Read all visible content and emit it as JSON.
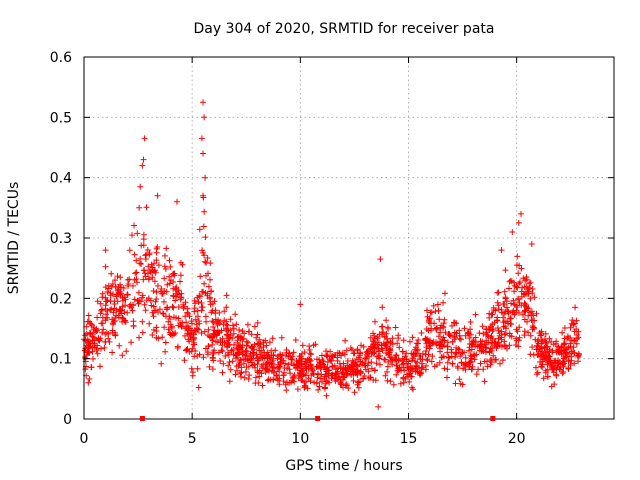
{
  "chart_data": {
    "type": "scatter",
    "title": "Day 304 of 2020, SRMTID for receiver pata",
    "xlabel": "GPS time / hours",
    "ylabel": "SRMTID / TECUs",
    "xlim": [
      0,
      24.5
    ],
    "ylim": [
      0,
      0.6
    ],
    "xticks": [
      0,
      5,
      10,
      15,
      20
    ],
    "xtick_labels": [
      "0",
      "5",
      "10",
      "15",
      "20"
    ],
    "yticks": [
      0,
      0.1,
      0.2,
      0.3,
      0.4,
      0.5,
      0.6
    ],
    "ytick_labels": [
      "0",
      "0.1",
      "0.2",
      "0.3",
      "0.4",
      "0.5",
      "0.6"
    ],
    "grid": true,
    "marker": "+",
    "color": "#ff0000",
    "axis_markers_x": [
      2.7,
      10.8,
      18.9
    ],
    "series": [
      {
        "name": "SRMTID",
        "profile": [
          [
            0.0,
            0.12,
            0.05
          ],
          [
            0.5,
            0.12,
            0.05
          ],
          [
            1.0,
            0.17,
            0.07
          ],
          [
            1.5,
            0.19,
            0.07
          ],
          [
            2.0,
            0.19,
            0.08
          ],
          [
            2.5,
            0.24,
            0.12
          ],
          [
            3.0,
            0.24,
            0.12
          ],
          [
            3.5,
            0.18,
            0.09
          ],
          [
            4.0,
            0.19,
            0.08
          ],
          [
            4.5,
            0.18,
            0.09
          ],
          [
            5.0,
            0.11,
            0.05
          ],
          [
            5.5,
            0.22,
            0.14
          ],
          [
            6.0,
            0.15,
            0.06
          ],
          [
            6.5,
            0.13,
            0.06
          ],
          [
            7.0,
            0.12,
            0.05
          ],
          [
            7.5,
            0.11,
            0.05
          ],
          [
            8.0,
            0.1,
            0.05
          ],
          [
            9.0,
            0.09,
            0.04
          ],
          [
            10.0,
            0.085,
            0.04
          ],
          [
            11.0,
            0.08,
            0.04
          ],
          [
            12.0,
            0.085,
            0.04
          ],
          [
            13.0,
            0.09,
            0.04
          ],
          [
            13.8,
            0.13,
            0.06
          ],
          [
            14.5,
            0.1,
            0.05
          ],
          [
            15.0,
            0.08,
            0.04
          ],
          [
            15.5,
            0.1,
            0.05
          ],
          [
            16.0,
            0.14,
            0.06
          ],
          [
            17.0,
            0.13,
            0.06
          ],
          [
            17.5,
            0.11,
            0.05
          ],
          [
            18.0,
            0.12,
            0.05
          ],
          [
            18.5,
            0.12,
            0.05
          ],
          [
            19.5,
            0.17,
            0.07
          ],
          [
            20.0,
            0.19,
            0.08
          ],
          [
            20.5,
            0.2,
            0.08
          ],
          [
            21.0,
            0.12,
            0.05
          ],
          [
            21.5,
            0.1,
            0.04
          ],
          [
            22.0,
            0.1,
            0.04
          ],
          [
            22.5,
            0.12,
            0.05
          ],
          [
            23.0,
            0.13,
            0.05
          ]
        ],
        "peaks": [
          [
            2.8,
            0.465
          ],
          [
            2.75,
            0.43
          ],
          [
            2.7,
            0.42
          ],
          [
            2.6,
            0.385
          ],
          [
            2.55,
            0.35
          ],
          [
            5.5,
            0.525
          ],
          [
            5.55,
            0.5
          ],
          [
            5.45,
            0.465
          ],
          [
            5.5,
            0.44
          ],
          [
            5.6,
            0.4
          ],
          [
            5.5,
            0.37
          ],
          [
            4.3,
            0.36
          ],
          [
            3.4,
            0.37
          ],
          [
            1.0,
            0.28
          ],
          [
            13.7,
            0.265
          ],
          [
            10.0,
            0.19
          ],
          [
            20.2,
            0.34
          ],
          [
            20.1,
            0.325
          ],
          [
            19.8,
            0.31
          ],
          [
            20.7,
            0.29
          ],
          [
            19.3,
            0.28
          ],
          [
            22.7,
            0.185
          ],
          [
            0.2,
            0.06
          ],
          [
            13.6,
            0.02
          ]
        ]
      }
    ]
  }
}
